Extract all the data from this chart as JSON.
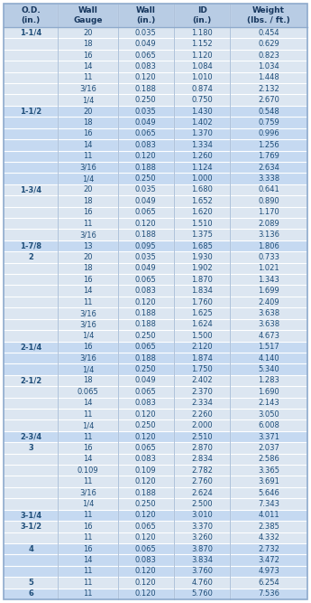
{
  "headers": [
    "O.D.\n(in.)",
    "Wall\nGauge",
    "Wall\n(in.)",
    "ID\n(in.)",
    "Weight\n(lbs. / ft.)"
  ],
  "rows": [
    [
      "1-1/4",
      "20",
      "0.035",
      "1.180",
      "0.454"
    ],
    [
      "",
      "18",
      "0.049",
      "1.152",
      "0.629"
    ],
    [
      "",
      "16",
      "0.065",
      "1.120",
      "0.823"
    ],
    [
      "",
      "14",
      "0.083",
      "1.084",
      "1.034"
    ],
    [
      "",
      "11",
      "0.120",
      "1.010",
      "1.448"
    ],
    [
      "",
      "3/16",
      "0.188",
      "0.874",
      "2.132"
    ],
    [
      "",
      "1/4",
      "0.250",
      "0.750",
      "2.670"
    ],
    [
      "1-1/2",
      "20",
      "0.035",
      "1.430",
      "0.548"
    ],
    [
      "",
      "18",
      "0.049",
      "1.402",
      "0.759"
    ],
    [
      "",
      "16",
      "0.065",
      "1.370",
      "0.996"
    ],
    [
      "",
      "14",
      "0.083",
      "1.334",
      "1.256"
    ],
    [
      "",
      "11",
      "0.120",
      "1.260",
      "1.769"
    ],
    [
      "",
      "3/16",
      "0.188",
      "1.124",
      "2.634"
    ],
    [
      "",
      "1/4",
      "0.250",
      "1.000",
      "3.338"
    ],
    [
      "1-3/4",
      "20",
      "0.035",
      "1.680",
      "0.641"
    ],
    [
      "",
      "18",
      "0.049",
      "1.652",
      "0.890"
    ],
    [
      "",
      "16",
      "0.065",
      "1.620",
      "1.170"
    ],
    [
      "",
      "11",
      "0.120",
      "1.510",
      "2.089"
    ],
    [
      "",
      "3/16",
      "0.188",
      "1.375",
      "3.136"
    ],
    [
      "1-7/8",
      "13",
      "0.095",
      "1.685",
      "1.806"
    ],
    [
      "2",
      "20",
      "0.035",
      "1.930",
      "0.733"
    ],
    [
      "",
      "18",
      "0.049",
      "1.902",
      "1.021"
    ],
    [
      "",
      "16",
      "0.065",
      "1.870",
      "1.343"
    ],
    [
      "",
      "14",
      "0.083",
      "1.834",
      "1.699"
    ],
    [
      "",
      "11",
      "0.120",
      "1.760",
      "2.409"
    ],
    [
      "",
      "3/16",
      "0.188",
      "1.625",
      "3.638"
    ],
    [
      "",
      "3/16",
      "0.188",
      "1.624",
      "3.638"
    ],
    [
      "",
      "1/4",
      "0.250",
      "1.500",
      "4.673"
    ],
    [
      "2-1/4",
      "16",
      "0.065",
      "2.120",
      "1.517"
    ],
    [
      "",
      "3/16",
      "0.188",
      "1.874",
      "4.140"
    ],
    [
      "",
      "1/4",
      "0.250",
      "1.750",
      "5.340"
    ],
    [
      "2-1/2",
      "18",
      "0.049",
      "2.402",
      "1.283"
    ],
    [
      "",
      "0.065",
      "0.065",
      "2.370",
      "1.690"
    ],
    [
      "",
      "14",
      "0.083",
      "2.334",
      "2.143"
    ],
    [
      "",
      "11",
      "0.120",
      "2.260",
      "3.050"
    ],
    [
      "",
      "1/4",
      "0.250",
      "2.000",
      "6.008"
    ],
    [
      "2-3/4",
      "11",
      "0.120",
      "2.510",
      "3.371"
    ],
    [
      "3",
      "16",
      "0.065",
      "2.870",
      "2.037"
    ],
    [
      "",
      "14",
      "0.083",
      "2.834",
      "2.586"
    ],
    [
      "",
      "0.109",
      "0.109",
      "2.782",
      "3.365"
    ],
    [
      "",
      "11",
      "0.120",
      "2.760",
      "3.691"
    ],
    [
      "",
      "3/16",
      "0.188",
      "2.624",
      "5.646"
    ],
    [
      "",
      "1/4",
      "0.250",
      "2.500",
      "7.343"
    ],
    [
      "3-1/4",
      "11",
      "0.120",
      "3.010",
      "4.011"
    ],
    [
      "3-1/2",
      "16",
      "0.065",
      "3.370",
      "2.385"
    ],
    [
      "",
      "11",
      "0.120",
      "3.260",
      "4.332"
    ],
    [
      "4",
      "16",
      "0.065",
      "3.870",
      "2.732"
    ],
    [
      "",
      "14",
      "0.083",
      "3.834",
      "3.472"
    ],
    [
      "",
      "11",
      "0.120",
      "3.760",
      "4.973"
    ],
    [
      "5",
      "11",
      "0.120",
      "4.760",
      "6.254"
    ],
    [
      "6",
      "11",
      "0.120",
      "5.760",
      "7.536"
    ]
  ],
  "header_bg": "#b8cce4",
  "row_bg_light": "#dce6f1",
  "row_bg_dark": "#c5d9f1",
  "text_color": "#1f4e79",
  "header_text_color": "#17375e",
  "border_color": "#ffffff",
  "outer_border_color": "#8eaacc"
}
